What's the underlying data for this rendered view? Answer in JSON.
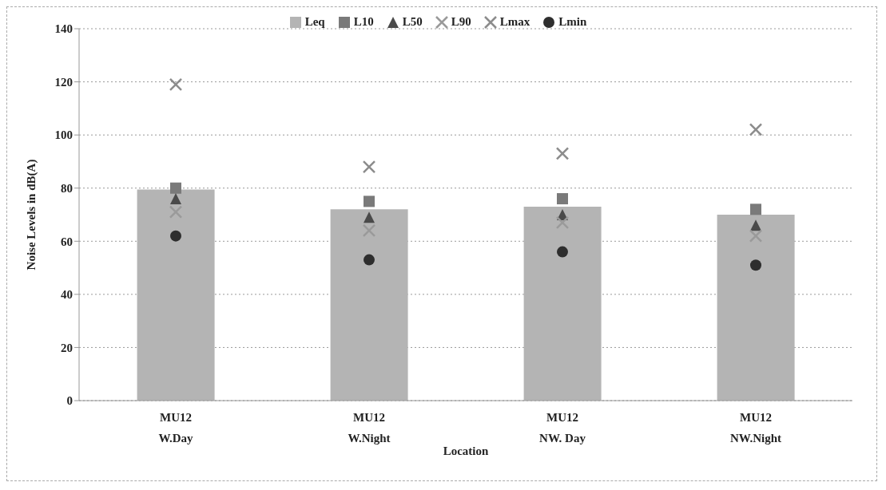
{
  "chart_data": {
    "type": "bar",
    "xlabel": "Location",
    "ylabel": "Noise Levels in dB(A)",
    "categories": [
      "MU12\nW.Day",
      "MU12\nW.Night",
      "MU12\nNW. Day",
      "MU12\nNW.Night"
    ],
    "series": [
      {
        "name": "Leq",
        "color": "#b4b4b4",
        "values": [
          79.5,
          72,
          73,
          70
        ]
      },
      {
        "name": "L10",
        "type": "scatter",
        "marker": "square",
        "color": "#7a7a7a",
        "values": [
          80,
          75,
          76,
          72
        ]
      },
      {
        "name": "L50",
        "type": "scatter",
        "marker": "triangle",
        "color": "#4a4a4a",
        "values": [
          76,
          69,
          70,
          66
        ]
      },
      {
        "name": "L90",
        "type": "scatter",
        "marker": "cross",
        "color": "#9a9a9a",
        "values": [
          71,
          64,
          67,
          62
        ]
      },
      {
        "name": "Lmax",
        "type": "scatter",
        "marker": "cross",
        "color": "#8c8c8c",
        "values": [
          119,
          88,
          93,
          102
        ]
      },
      {
        "name": "Lmin",
        "type": "scatter",
        "marker": "circle",
        "color": "#2e2e2e",
        "values": [
          62,
          53,
          56,
          51
        ]
      }
    ],
    "ylim": [
      0,
      140
    ],
    "yticks": [
      0,
      20,
      40,
      60,
      80,
      100,
      120,
      140
    ],
    "grid": "y",
    "legend": "top"
  }
}
